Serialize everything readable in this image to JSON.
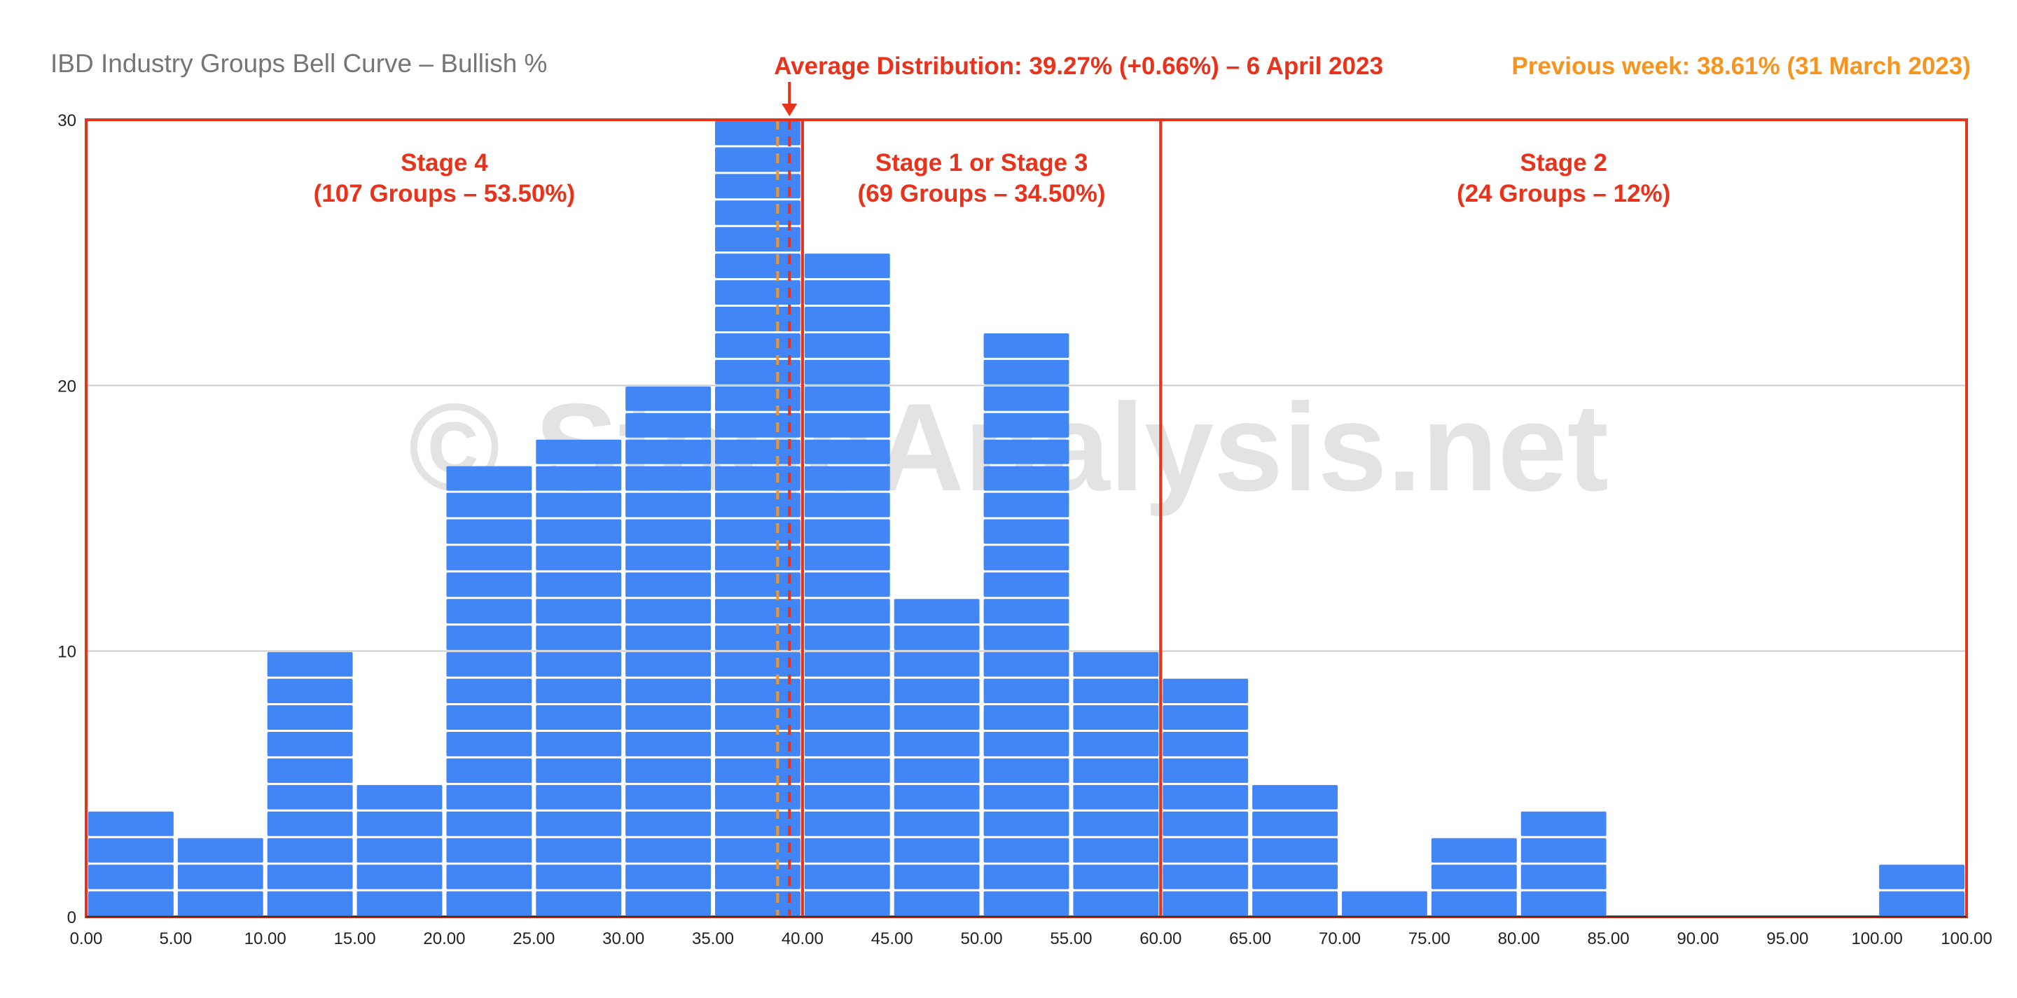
{
  "chart_data": {
    "type": "bar",
    "title": "IBD Industry Groups Bell Curve – Bullish %",
    "watermark": "© StageAnalysis.net",
    "x_ticks": [
      "0.00",
      "5.00",
      "10.00",
      "15.00",
      "20.00",
      "25.00",
      "30.00",
      "35.00",
      "40.00",
      "45.00",
      "50.00",
      "55.00",
      "60.00",
      "65.00",
      "70.00",
      "75.00",
      "80.00",
      "85.00",
      "90.00",
      "95.00",
      "100.00",
      "100.00"
    ],
    "y_ticks": [
      "0",
      "10",
      "20",
      "30"
    ],
    "x_range": [
      0,
      105
    ],
    "ylim": [
      0,
      30
    ],
    "grid": true,
    "bins": [
      {
        "from": 0,
        "to": 5,
        "count": 4
      },
      {
        "from": 5,
        "to": 10,
        "count": 3
      },
      {
        "from": 10,
        "to": 15,
        "count": 10
      },
      {
        "from": 15,
        "to": 20,
        "count": 5
      },
      {
        "from": 20,
        "to": 25,
        "count": 17
      },
      {
        "from": 25,
        "to": 30,
        "count": 18
      },
      {
        "from": 30,
        "to": 35,
        "count": 20
      },
      {
        "from": 35,
        "to": 40,
        "count": 30
      },
      {
        "from": 40,
        "to": 45,
        "count": 25
      },
      {
        "from": 45,
        "to": 50,
        "count": 12
      },
      {
        "from": 50,
        "to": 55,
        "count": 22
      },
      {
        "from": 55,
        "to": 60,
        "count": 10
      },
      {
        "from": 60,
        "to": 65,
        "count": 9
      },
      {
        "from": 65,
        "to": 70,
        "count": 5
      },
      {
        "from": 70,
        "to": 75,
        "count": 1
      },
      {
        "from": 75,
        "to": 80,
        "count": 3
      },
      {
        "from": 80,
        "to": 85,
        "count": 4
      },
      {
        "from": 85,
        "to": 90,
        "count": 0
      },
      {
        "from": 90,
        "to": 95,
        "count": 0
      },
      {
        "from": 95,
        "to": 100,
        "count": 0
      },
      {
        "from": 100,
        "to": 105,
        "count": 2
      }
    ],
    "bar_color": "#4285f4",
    "average_line": {
      "label": "Average Distribution: 39.27% (+0.66%) – 6 April 2023",
      "value": 39.27,
      "color": "#e8331c"
    },
    "previous_line": {
      "label": "Previous week: 38.61% (31 March 2023)",
      "value": 38.61,
      "color": "#f7941d"
    },
    "stages": [
      {
        "name": "Stage 4",
        "detail": "(107 Groups – 53.50%)",
        "from": 0,
        "to": 40
      },
      {
        "name": "Stage 1 or Stage 3",
        "detail": "(69 Groups – 34.50%)",
        "from": 40,
        "to": 60
      },
      {
        "name": "Stage 2",
        "detail": "(24 Groups – 12%)",
        "from": 60,
        "to": 105
      }
    ],
    "stage_color": "#e8331c"
  }
}
